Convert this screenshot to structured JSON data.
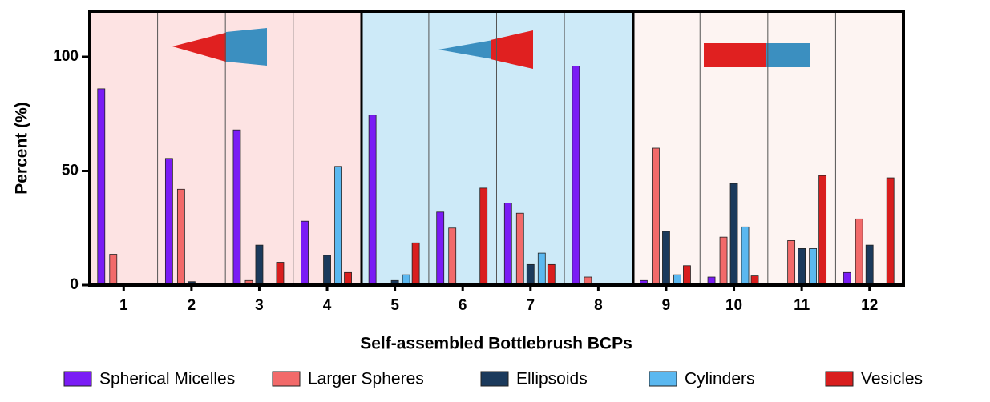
{
  "chart_data": {
    "type": "bar",
    "xlabel": "Self-assembled Bottlebrush BCPs",
    "ylabel": "Percent (%)",
    "categories": [
      "1",
      "2",
      "3",
      "4",
      "5",
      "6",
      "7",
      "8",
      "9",
      "10",
      "11",
      "12"
    ],
    "ylim": [
      0,
      120
    ],
    "yticks": [
      0,
      50,
      100
    ],
    "series": [
      {
        "name": "Spherical Micelles",
        "color": "#7a1cf5",
        "values": [
          86,
          55.5,
          68,
          28,
          74.5,
          32,
          36,
          96,
          2,
          3.5,
          0,
          5.5
        ]
      },
      {
        "name": "Larger Spheres",
        "color": "#f26a6a",
        "values": [
          13.5,
          42,
          2,
          0,
          0,
          25,
          31.5,
          3.5,
          60,
          21,
          19.5,
          29
        ]
      },
      {
        "name": "Ellipsoids",
        "color": "#1b3a5c",
        "values": [
          0,
          1.5,
          17.5,
          13,
          2,
          0,
          9,
          0,
          23.5,
          44.5,
          16,
          17.5
        ]
      },
      {
        "name": "Cylinders",
        "color": "#5bb8f0",
        "values": [
          0,
          0,
          0,
          52,
          4.5,
          0,
          14,
          0,
          4.5,
          25.5,
          16,
          0
        ]
      },
      {
        "name": "Vesicles",
        "color": "#d91e1e",
        "values": [
          0,
          0,
          10,
          5.5,
          18.5,
          42.5,
          9,
          0,
          8.5,
          4,
          48,
          47
        ]
      }
    ]
  }
}
